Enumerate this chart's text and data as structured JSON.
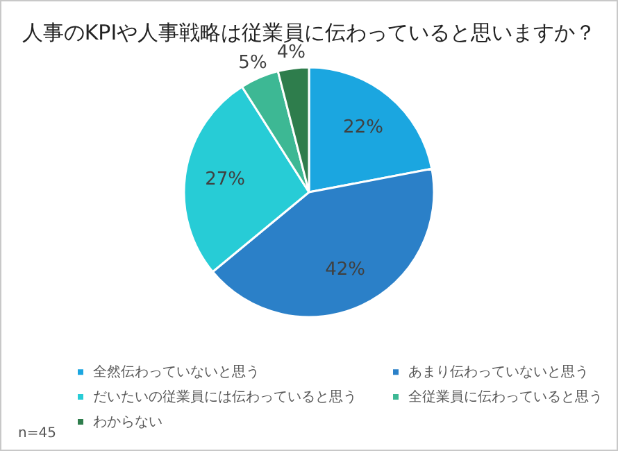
{
  "chart_data": {
    "type": "pie",
    "title": "人事のKPIや人事戦略は従業員に伝わっていると思いますか？",
    "categories": [
      "全然伝わっていないと思う",
      "あまり伝わっていないと思う",
      "だいたいの従業員には伝わっていると思う",
      "全従業員に伝わっていると思う",
      "わからない"
    ],
    "values": [
      22,
      42,
      27,
      5,
      4
    ],
    "value_labels": [
      "22%",
      "42%",
      "27%",
      "5%",
      "4%"
    ],
    "colors": [
      "#1ba6e0",
      "#2b80c8",
      "#27ccd6",
      "#3db894",
      "#2e7d4c"
    ],
    "legend": "bottom",
    "annotations": [
      "n=45"
    ]
  }
}
